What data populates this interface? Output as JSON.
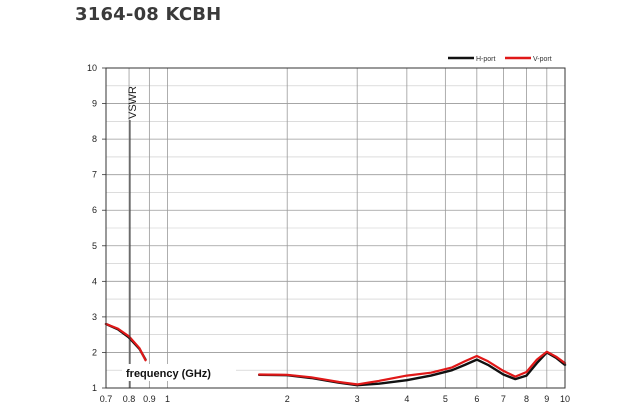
{
  "heading": "3164-08 KCBH",
  "chart_data": {
    "type": "line",
    "title": "",
    "xlabel": "frequency (GHz)",
    "ylabel": "VSWR",
    "xscale": "log",
    "xlim": [
      0.7,
      10
    ],
    "ylim": [
      1,
      10
    ],
    "grid": true,
    "legend_position": "top-right",
    "x_ticks": [
      0.7,
      0.8,
      0.9,
      1,
      2,
      3,
      4,
      5,
      6,
      7,
      8,
      9,
      10
    ],
    "x_tick_labels": [
      "0.7",
      "0.8",
      "0.9",
      "1",
      "2",
      "3",
      "4",
      "5",
      "6",
      "7",
      "8",
      "9",
      "10"
    ],
    "y_ticks": [
      1,
      2,
      3,
      4,
      5,
      6,
      7,
      8,
      9,
      10
    ],
    "y_tick_labels": [
      "1",
      "2",
      "3",
      "4",
      "5",
      "6",
      "7",
      "8",
      "9",
      "10"
    ],
    "series": [
      {
        "name": "H-port",
        "color": "#111111",
        "segments": [
          [
            [
              0.7,
              2.8
            ],
            [
              0.75,
              2.65
            ],
            [
              0.8,
              2.42
            ],
            [
              0.85,
              2.1
            ],
            [
              0.88,
              1.8
            ]
          ],
          [
            [
              1.7,
              1.37
            ],
            [
              2.0,
              1.36
            ],
            [
              2.3,
              1.28
            ],
            [
              2.7,
              1.15
            ],
            [
              3.0,
              1.08
            ],
            [
              3.4,
              1.12
            ],
            [
              4.0,
              1.22
            ],
            [
              4.6,
              1.35
            ],
            [
              5.2,
              1.5
            ],
            [
              5.6,
              1.65
            ],
            [
              6.0,
              1.8
            ],
            [
              6.4,
              1.65
            ],
            [
              7.0,
              1.38
            ],
            [
              7.5,
              1.25
            ],
            [
              8.0,
              1.35
            ],
            [
              8.5,
              1.7
            ],
            [
              9.0,
              2.0
            ],
            [
              9.5,
              1.85
            ],
            [
              10.0,
              1.65
            ]
          ]
        ]
      },
      {
        "name": "V-port",
        "color": "#e01818",
        "segments": [
          [
            [
              0.7,
              2.8
            ],
            [
              0.75,
              2.67
            ],
            [
              0.8,
              2.45
            ],
            [
              0.85,
              2.12
            ],
            [
              0.88,
              1.78
            ]
          ],
          [
            [
              1.7,
              1.38
            ],
            [
              2.0,
              1.37
            ],
            [
              2.3,
              1.3
            ],
            [
              2.7,
              1.17
            ],
            [
              3.0,
              1.1
            ],
            [
              3.4,
              1.2
            ],
            [
              4.0,
              1.35
            ],
            [
              4.6,
              1.43
            ],
            [
              5.2,
              1.58
            ],
            [
              5.6,
              1.75
            ],
            [
              6.0,
              1.9
            ],
            [
              6.4,
              1.75
            ],
            [
              7.0,
              1.48
            ],
            [
              7.5,
              1.32
            ],
            [
              8.0,
              1.45
            ],
            [
              8.5,
              1.8
            ],
            [
              9.0,
              2.02
            ],
            [
              9.5,
              1.88
            ],
            [
              10.0,
              1.7
            ]
          ]
        ]
      }
    ]
  }
}
